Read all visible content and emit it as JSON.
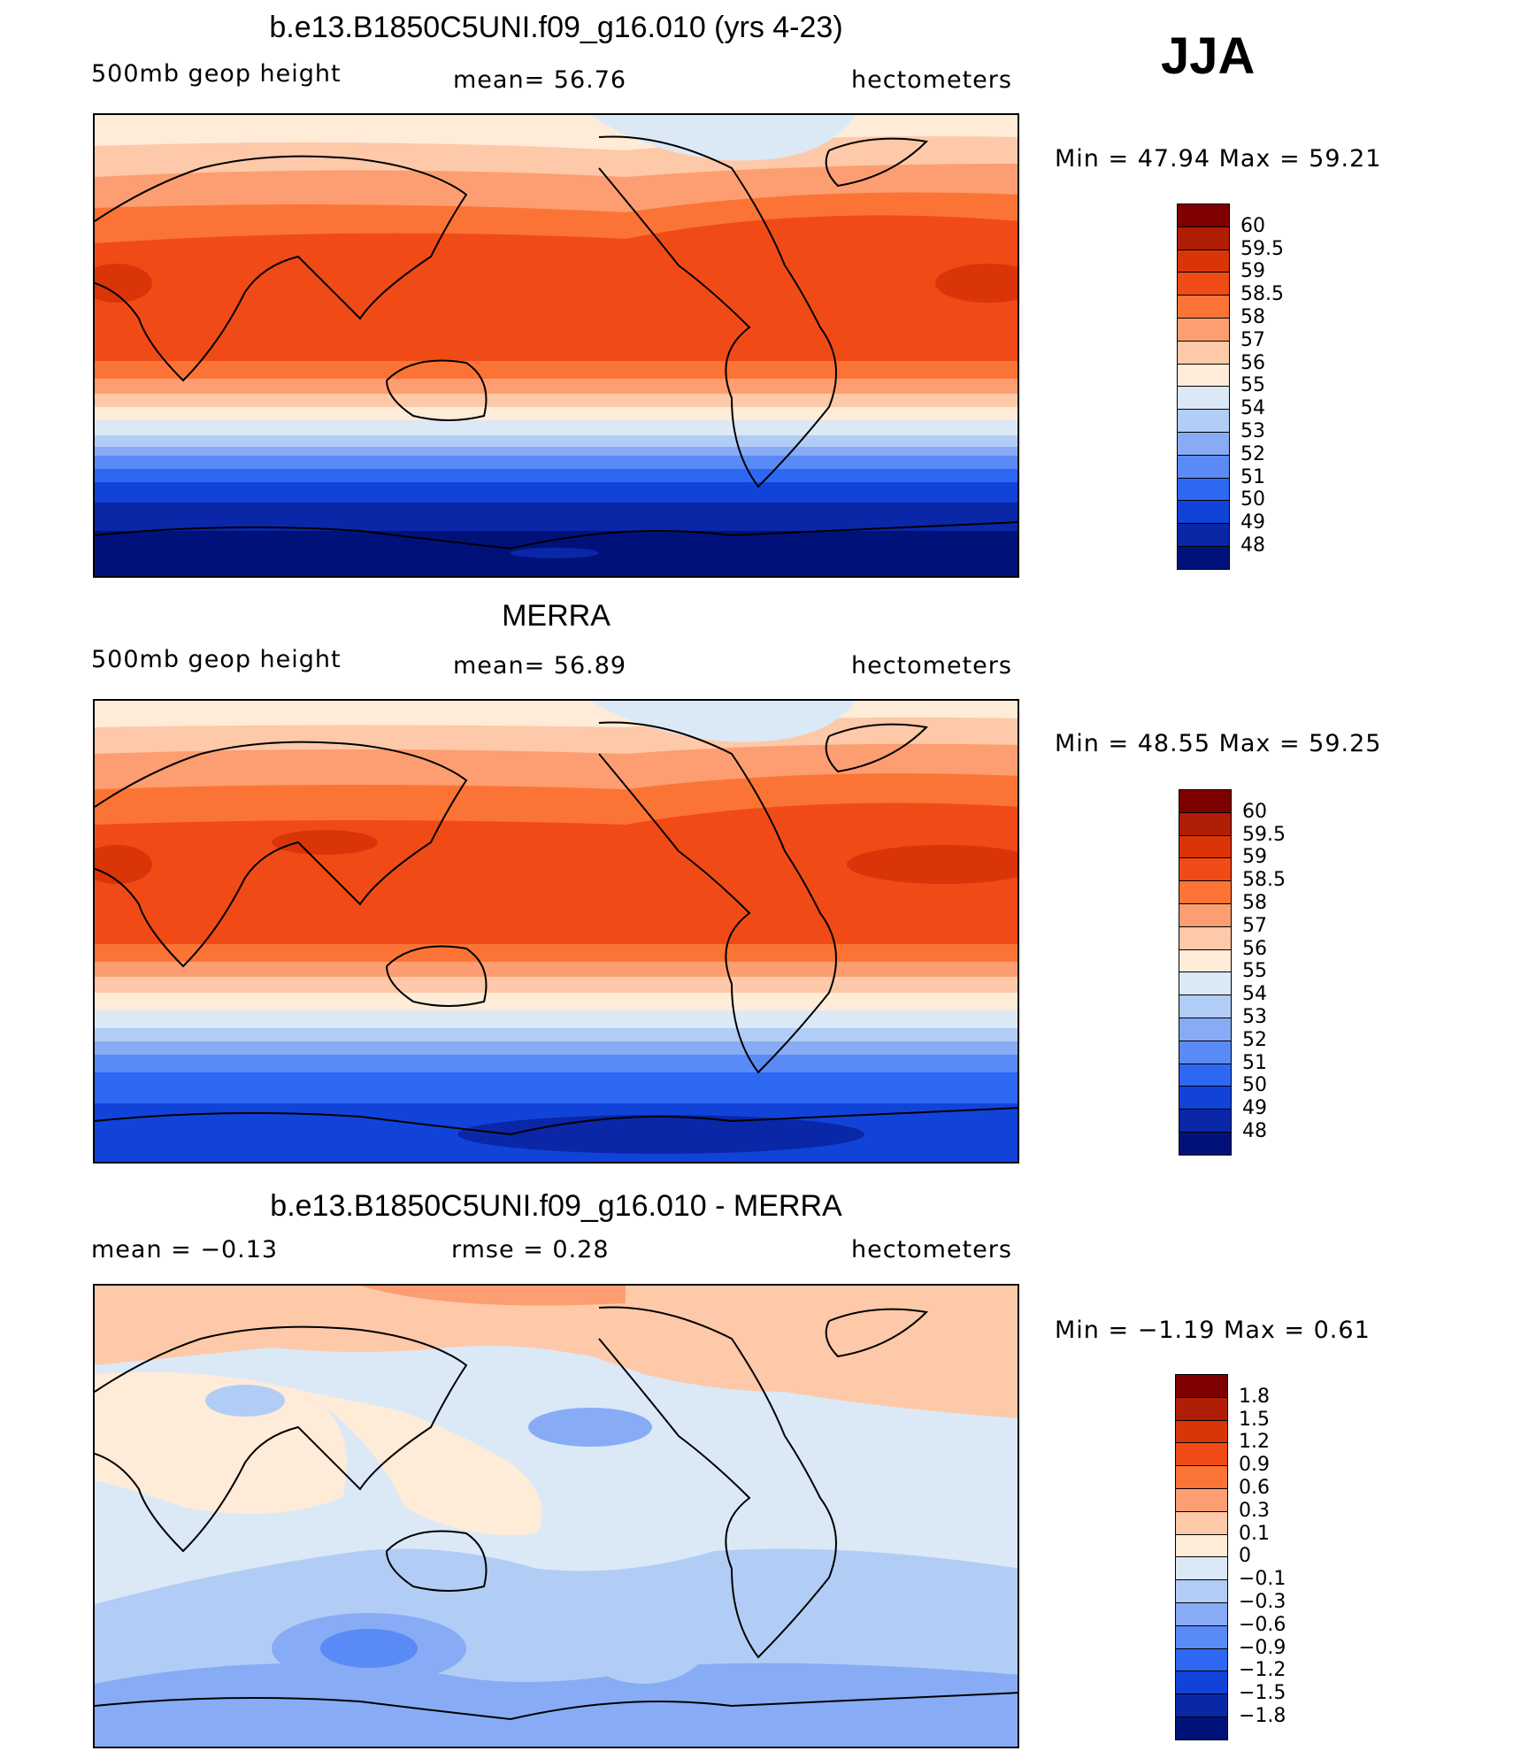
{
  "season": "JJA",
  "panels": [
    {
      "title": "b.e13.B1850C5UNI.f09_g16.010 (yrs 4-23)",
      "left_label": "500mb geop height",
      "center_label": "mean=  56.76",
      "right_label": "hectometers",
      "minmax": "Min =   47.94 Max =   59.21",
      "colorbar": {
        "ticks": [
          "60",
          "59.5",
          "59",
          "58.5",
          "58",
          "57",
          "56",
          "55",
          "54",
          "53",
          "52",
          "51",
          "50",
          "49",
          "48"
        ],
        "colors": [
          "#7f0000",
          "#b01e05",
          "#d93508",
          "#f04b16",
          "#fc7435",
          "#fc9e72",
          "#fdc9a8",
          "#feebd8",
          "#dbe9f7",
          "#b2cdf5",
          "#87acf5",
          "#5a8af5",
          "#2d68f2",
          "#1143d9",
          "#0a27a8",
          "#00127a"
        ]
      }
    },
    {
      "title": "MERRA",
      "left_label": "500mb geop height",
      "center_label": "mean=  56.89",
      "right_label": "hectometers",
      "minmax": "Min =   48.55 Max =   59.25",
      "colorbar": {
        "ticks": [
          "60",
          "59.5",
          "59",
          "58.5",
          "58",
          "57",
          "56",
          "55",
          "54",
          "53",
          "52",
          "51",
          "50",
          "49",
          "48"
        ],
        "colors": [
          "#7f0000",
          "#b01e05",
          "#d93508",
          "#f04b16",
          "#fc7435",
          "#fc9e72",
          "#fdc9a8",
          "#feebd8",
          "#dbe9f7",
          "#b2cdf5",
          "#87acf5",
          "#5a8af5",
          "#2d68f2",
          "#1143d9",
          "#0a27a8",
          "#00127a"
        ]
      }
    },
    {
      "title": "b.e13.B1850C5UNI.f09_g16.010 - MERRA",
      "left_label": "mean =   −0.13",
      "center_label": "rmse =    0.28",
      "right_label": "hectometers",
      "minmax": "Min =  −1.19 Max =    0.61",
      "colorbar": {
        "ticks": [
          "1.8",
          "1.5",
          "1.2",
          "0.9",
          "0.6",
          "0.3",
          "0.1",
          "0",
          "−0.1",
          "−0.3",
          "−0.6",
          "−0.9",
          "−1.2",
          "−1.5",
          "−1.8"
        ],
        "colors": [
          "#7f0000",
          "#b01e05",
          "#d93508",
          "#f04b16",
          "#fc7435",
          "#fc9e72",
          "#fdc9a8",
          "#feebd8",
          "#dbe9f7",
          "#b2cdf5",
          "#87acf5",
          "#5a8af5",
          "#2d68f2",
          "#1143d9",
          "#0a27a8",
          "#00127a"
        ]
      }
    }
  ]
}
